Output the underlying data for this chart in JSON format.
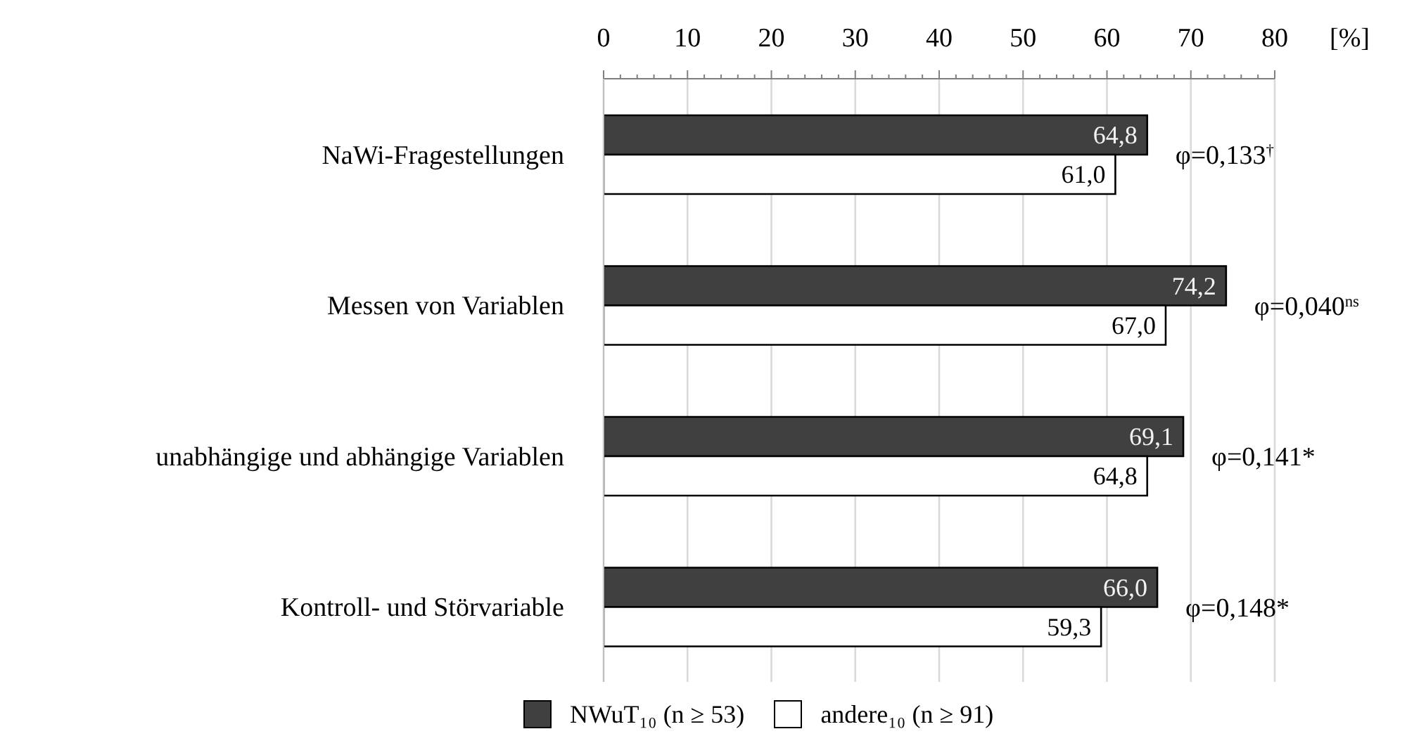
{
  "chart_data": {
    "type": "bar",
    "orientation": "horizontal",
    "categories": [
      "NaWi-Fragestellungen",
      "Messen von Variablen",
      "unabhängige und abhängige Variablen",
      "Kontroll- und Störvariable"
    ],
    "series": [
      {
        "name": "NWuT₁₀ (n ≥ 53)",
        "color": "#404040",
        "values": [
          64.8,
          74.2,
          69.1,
          66.0
        ],
        "value_labels": [
          "64,8",
          "74,2",
          "69,1",
          "66,0"
        ]
      },
      {
        "name": "andere₁₀ (n ≥ 91)",
        "color": "#ffffff",
        "values": [
          61.0,
          67.0,
          64.8,
          59.3
        ],
        "value_labels": [
          "61,0",
          "67,0",
          "64,8",
          "59,3"
        ]
      }
    ],
    "xlim": [
      0,
      80
    ],
    "xticks": [
      0,
      {
        "value": 2,
        "label": null
      },
      {
        "value": 4,
        "label": null
      },
      {
        "value": 6,
        "label": null
      },
      {
        "value": 8,
        "label": null
      },
      10,
      {
        "value": 12,
        "label": null
      },
      {
        "value": 14,
        "label": null
      },
      {
        "value": 16,
        "label": null
      },
      {
        "value": 18,
        "label": null
      },
      20,
      {
        "value": 22,
        "label": null
      },
      {
        "value": 24,
        "label": null
      },
      {
        "value": 26,
        "label": null
      },
      {
        "value": 28,
        "label": null
      },
      30,
      {
        "value": 32,
        "label": null
      },
      {
        "value": 34,
        "label": null
      },
      {
        "value": 36,
        "label": null
      },
      {
        "value": 38,
        "label": null
      },
      40,
      {
        "value": 42,
        "label": null
      },
      {
        "value": 44,
        "label": null
      },
      {
        "value": 46,
        "label": null
      },
      {
        "value": 48,
        "label": null
      },
      50,
      {
        "value": 52,
        "label": null
      },
      {
        "value": 54,
        "label": null
      },
      {
        "value": 56,
        "label": null
      },
      {
        "value": 58,
        "label": null
      },
      60,
      {
        "value": 62,
        "label": null
      },
      {
        "value": 64,
        "label": null
      },
      {
        "value": 66,
        "label": null
      },
      {
        "value": 68,
        "label": null
      },
      70,
      {
        "value": 72,
        "label": null
      },
      {
        "value": 74,
        "label": null
      },
      {
        "value": 76,
        "label": null
      },
      {
        "value": 78,
        "label": null
      },
      80
    ],
    "xlabel": "[%]",
    "grid": "x",
    "legend": "bottom",
    "annotations": [
      "φ=0,133$^{†}$",
      "φ=0,040$^{ns}$",
      "φ=0,141*",
      "φ=0,148*"
    ]
  }
}
